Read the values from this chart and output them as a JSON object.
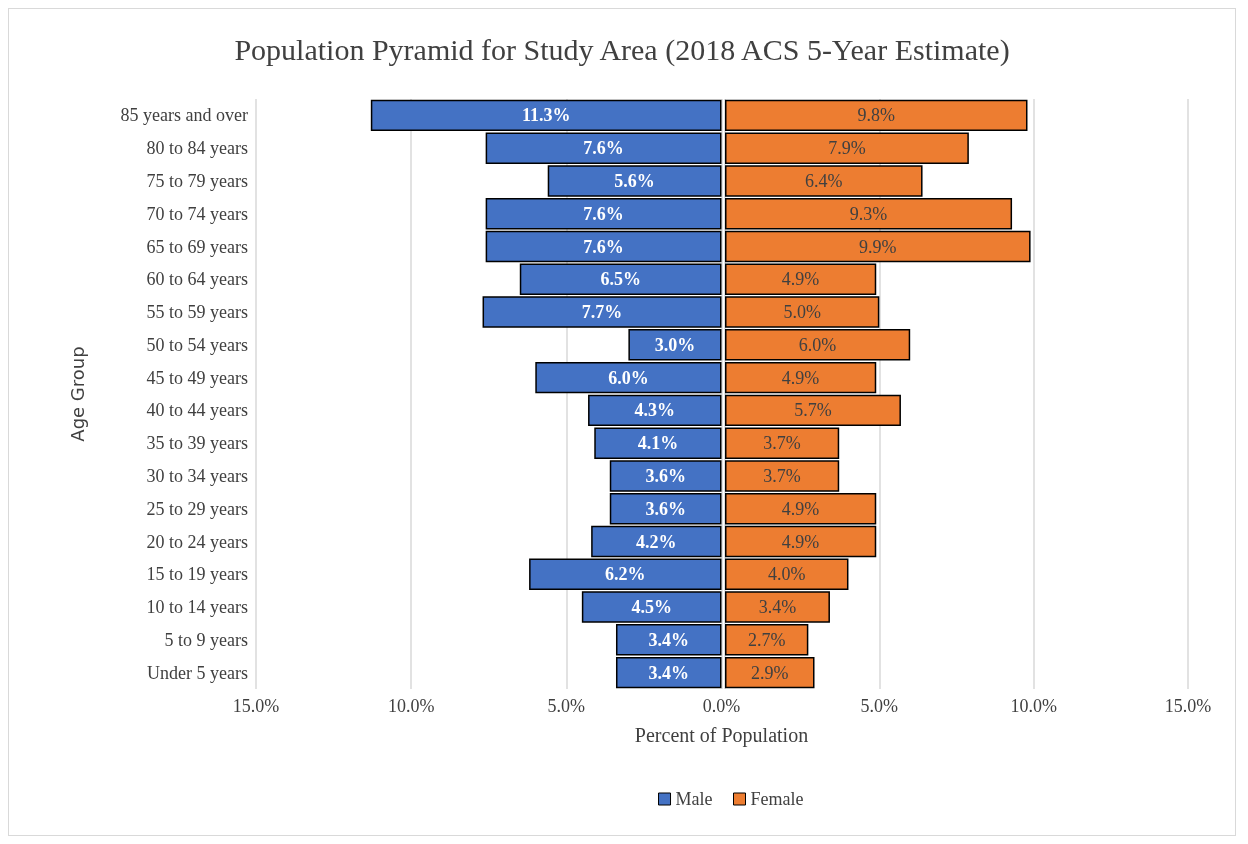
{
  "chart_data": [
    {
      "type": "bar",
      "orientation": "horizontal",
      "title": "Population Pyramid for Study Area (2018 ACS 5-Year Estimate)",
      "xlabel": "Percent of Population",
      "ylabel": "Age Group",
      "categories": [
        "85 years and over",
        "80 to 84 years",
        "75 to 79 years",
        "70 to 74 years",
        "65 to 69 years",
        "60 to 64 years",
        "55 to 59 years",
        "50 to 54 years",
        "45 to 49 years",
        "40 to 44 years",
        "35 to 39 years",
        "30 to 34 years",
        "25 to 29 years",
        "20 to 24 years",
        "15 to 19 years",
        "10 to 14 years",
        "5 to 9 years",
        "Under 5 years"
      ],
      "series": [
        {
          "name": "Male",
          "color": "#4472c4",
          "values": [
            11.3,
            7.6,
            5.6,
            7.6,
            7.6,
            6.5,
            7.7,
            3.0,
            6.0,
            4.3,
            4.1,
            3.6,
            3.6,
            4.2,
            6.2,
            4.5,
            3.4,
            3.4
          ],
          "value_labels": [
            "11.3%",
            "7.6%",
            "5.6%",
            "7.6%",
            "7.6%",
            "6.5%",
            "7.7%",
            "3.0%",
            "6.0%",
            "4.3%",
            "4.1%",
            "3.6%",
            "3.6%",
            "4.2%",
            "6.2%",
            "4.5%",
            "3.4%",
            "3.4%"
          ]
        }
      ],
      "xlim": [
        15,
        0
      ],
      "xticks": [
        {
          "value": 15,
          "label": "15.0%"
        },
        {
          "value": 10,
          "label": "10.0%"
        },
        {
          "value": 5,
          "label": "5.0%"
        },
        {
          "value": 0,
          "label": "0.0%"
        }
      ],
      "grid": "x",
      "legend": "bottom"
    },
    {
      "type": "bar",
      "orientation": "horizontal",
      "categories": [
        null,
        null,
        null,
        null,
        null,
        null,
        null,
        null,
        null,
        null,
        null,
        null,
        null,
        null,
        null,
        null,
        null,
        null
      ],
      "series": [
        {
          "name": "Female",
          "color": "#ed7d31",
          "values": [
            9.8,
            7.9,
            6.4,
            9.3,
            9.9,
            4.9,
            5.0,
            6.0,
            4.9,
            5.7,
            3.7,
            3.7,
            4.9,
            4.9,
            4.0,
            3.4,
            2.7,
            2.9
          ],
          "value_labels": [
            "9.8%",
            "7.9%",
            "6.4%",
            "9.3%",
            "9.9%",
            "4.9%",
            "5.0%",
            "6.0%",
            "4.9%",
            "5.7%",
            "3.7%",
            "3.7%",
            "4.9%",
            "4.9%",
            "4.0%",
            "3.4%",
            "2.7%",
            "2.9%"
          ]
        }
      ],
      "xlim": [
        0,
        15
      ],
      "xticks": [
        {
          "value": 0,
          "label": null
        },
        {
          "value": 5,
          "label": "5.0%"
        },
        {
          "value": 10,
          "label": "10.0%"
        },
        {
          "value": 15,
          "label": "15.0%"
        }
      ],
      "grid": "x",
      "legend": "bottom",
      "tick_labels": "x"
    }
  ]
}
